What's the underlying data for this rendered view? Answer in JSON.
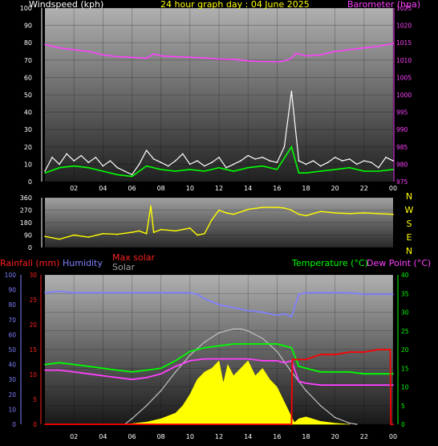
{
  "title": "24 hour graph day : 04 June 2025",
  "labels": {
    "windspeed": "Windspeed (kph)",
    "barometer": "Barometer (hpa)",
    "rainfall": "Rainfall (mm)",
    "humidity": "Humidity",
    "max_solar": "Max solar",
    "solar": "Solar",
    "temperature": "Temperature (°C)",
    "dew_point": "Dew Point (°C)"
  },
  "colors": {
    "windspeed": "#ffffff",
    "windavg": "#00ff00",
    "barometer": "#ff40ff",
    "direction": "#ffff00",
    "rainfall": "#ff0000",
    "humidity": "#8080ff",
    "max_solar": "#c0c0c0",
    "solar": "#ffff00",
    "temperature": "#00ff00",
    "dew_point": "#ff40ff",
    "title": "#ffff00",
    "axis_green": "#00ff00"
  },
  "chart_data": [
    {
      "type": "line",
      "title": "24 hour graph day : 04 June 2025",
      "x_ticks": [
        "02",
        "04",
        "06",
        "08",
        "10",
        "12",
        "14",
        "16",
        "18",
        "20",
        "22",
        "00"
      ],
      "xlim": [
        0,
        24
      ],
      "left_axis": {
        "label": "Windspeed (kph)",
        "ylim": [
          0,
          100
        ],
        "ticks": [
          0,
          10,
          20,
          30,
          40,
          50,
          60,
          70,
          80,
          90,
          100
        ]
      },
      "right_axis": {
        "label": "Barometer (hpa)",
        "ylim": [
          975,
          1025
        ],
        "ticks": [
          975,
          980,
          985,
          990,
          995,
          1000,
          1005,
          1010,
          1015,
          1020,
          1025
        ]
      },
      "series": [
        {
          "name": "Windspeed (kph)",
          "axis": "left",
          "x": [
            0,
            0.5,
            1,
            1.5,
            2,
            2.5,
            3,
            3.5,
            4,
            4.5,
            5,
            5.5,
            6,
            6.5,
            7,
            7.5,
            8,
            8.5,
            9,
            9.5,
            10,
            10.5,
            11,
            11.5,
            12,
            12.5,
            13,
            13.5,
            14,
            14.5,
            15,
            15.5,
            16,
            16.5,
            17,
            17.5,
            18,
            18.5,
            19,
            19.5,
            20,
            20.5,
            21,
            21.5,
            22,
            22.5,
            23,
            23.5,
            24
          ],
          "y": [
            6,
            14,
            10,
            16,
            12,
            15,
            11,
            14,
            9,
            12,
            8,
            6,
            4,
            10,
            18,
            13,
            11,
            9,
            12,
            16,
            10,
            12,
            9,
            11,
            14,
            8,
            10,
            12,
            15,
            13,
            14,
            12,
            11,
            20,
            52,
            12,
            10,
            12,
            9,
            11,
            14,
            12,
            13,
            10,
            12,
            11,
            8,
            14,
            12
          ]
        },
        {
          "name": "Wind average",
          "axis": "left",
          "x": [
            0,
            1,
            2,
            3,
            4,
            5,
            6,
            7,
            8,
            9,
            10,
            11,
            12,
            13,
            14,
            15,
            16,
            17,
            17.5,
            18,
            19,
            20,
            21,
            22,
            23,
            24
          ],
          "y": [
            5,
            8,
            9,
            8,
            6,
            4,
            3,
            9,
            7,
            6,
            7,
            6,
            8,
            6,
            8,
            9,
            7,
            20,
            5,
            5,
            6,
            7,
            8,
            6,
            6,
            7
          ]
        },
        {
          "name": "Barometer (hpa)",
          "axis": "right",
          "x": [
            0,
            1,
            2,
            3,
            4,
            5,
            6,
            7,
            7.5,
            8,
            9,
            10,
            11,
            12,
            13,
            14,
            15,
            16,
            16.5,
            17,
            17.3,
            18,
            19,
            20,
            21,
            22,
            23,
            24
          ],
          "y": [
            1014.5,
            1013.5,
            1013,
            1012.5,
            1011.5,
            1011,
            1010.8,
            1010.5,
            1011.8,
            1011.2,
            1011,
            1010.8,
            1010.6,
            1010.3,
            1010.2,
            1009.8,
            1009.6,
            1009.5,
            1009.8,
            1010.5,
            1012,
            1011.2,
            1011.5,
            1012.5,
            1013,
            1013.5,
            1014,
            1014.8
          ]
        }
      ]
    },
    {
      "type": "line",
      "x_ticks": [],
      "xlim": [
        0,
        24
      ],
      "left_axis": {
        "label": "",
        "ylim": [
          0,
          360
        ],
        "ticks": [
          0,
          90,
          180,
          270,
          360
        ]
      },
      "right_labels": [
        "N",
        "W",
        "S",
        "E",
        "N"
      ],
      "series": [
        {
          "name": "Wind direction",
          "axis": "left",
          "x": [
            0,
            1,
            2,
            3,
            4,
            5,
            6,
            6.5,
            7,
            7.3,
            7.5,
            8,
            9,
            10,
            10.5,
            11,
            11.5,
            12,
            12.5,
            13,
            14,
            15,
            16,
            16.5,
            17,
            17.5,
            18,
            19,
            20,
            21,
            22,
            23,
            24
          ],
          "y": [
            80,
            60,
            90,
            75,
            100,
            95,
            110,
            120,
            100,
            300,
            110,
            130,
            120,
            140,
            90,
            100,
            200,
            270,
            250,
            240,
            275,
            290,
            290,
            285,
            270,
            240,
            230,
            260,
            250,
            245,
            250,
            245,
            240
          ]
        }
      ]
    },
    {
      "type": "line",
      "x_ticks": [
        "02",
        "04",
        "06",
        "08",
        "10",
        "12",
        "14",
        "16",
        "18",
        "20",
        "22",
        "00"
      ],
      "xlim": [
        0,
        24
      ],
      "rainfall_axis": {
        "label": "Rainfall (mm)",
        "ylim": [
          0,
          30
        ],
        "ticks": [
          0,
          5,
          10,
          15,
          20,
          25,
          30
        ]
      },
      "humidity_axis": {
        "label": "Humidity",
        "ylim": [
          0,
          100
        ],
        "ticks": [
          0,
          10,
          20,
          30,
          40,
          50,
          60,
          70,
          80,
          90,
          100
        ]
      },
      "temperature_axis": {
        "label": "Temperature (°C)",
        "ylim": [
          0,
          40
        ],
        "ticks": [
          0,
          5,
          10,
          15,
          20,
          25,
          30,
          35,
          40
        ]
      },
      "series": [
        {
          "name": "Humidity",
          "axis": "humidity",
          "x": [
            0,
            1,
            2,
            3,
            4,
            5,
            6,
            7,
            8,
            9,
            9.5,
            10,
            10.5,
            11,
            12,
            13,
            14,
            15,
            16,
            16.5,
            17,
            17.5,
            18,
            19,
            20,
            21,
            22,
            23,
            24
          ],
          "y": [
            88,
            89,
            88,
            88,
            88,
            88,
            88,
            88,
            88,
            88,
            88,
            88,
            87,
            84,
            80,
            78,
            76,
            75,
            73,
            74,
            72,
            87,
            88,
            88,
            88,
            88,
            87,
            87,
            87
          ]
        },
        {
          "name": "Max solar",
          "axis": "temperature",
          "x": [
            5.5,
            6,
            7,
            8,
            9,
            10,
            11,
            12,
            13,
            13.5,
            14,
            15,
            16,
            17,
            18,
            19,
            20,
            21,
            21.5
          ],
          "y": [
            0,
            1.5,
            5,
            9,
            14,
            18.5,
            22,
            24.5,
            25.5,
            25.5,
            25,
            23,
            19.5,
            14,
            9,
            5,
            1.8,
            0.3,
            0
          ]
        },
        {
          "name": "Temperature (°C)",
          "axis": "temperature",
          "x": [
            0,
            1,
            2,
            3,
            4,
            5,
            6,
            7,
            8,
            9,
            10,
            11,
            12,
            13,
            14,
            15,
            16,
            16.5,
            17,
            17.5,
            18,
            19,
            20,
            21,
            22,
            23,
            24
          ],
          "y": [
            16,
            16.5,
            16,
            15.5,
            15,
            14.5,
            14,
            14.5,
            15,
            17,
            19.5,
            20.5,
            21,
            21.5,
            21.5,
            21.5,
            21.5,
            21,
            20.5,
            15.5,
            15,
            14,
            14,
            14,
            13.5,
            13.5,
            13.5
          ]
        },
        {
          "name": "Dew Point (°C)",
          "axis": "temperature",
          "x": [
            0,
            1,
            2,
            3,
            4,
            5,
            6,
            7,
            8,
            9,
            10,
            11,
            12,
            13,
            14,
            15,
            16,
            16.5,
            17,
            17.5,
            18,
            19,
            20,
            21,
            22,
            23,
            24
          ],
          "y": [
            14.5,
            14.5,
            14,
            13.5,
            13,
            12.5,
            12,
            12.5,
            13.5,
            15.5,
            17,
            17.5,
            17.5,
            17.5,
            17.5,
            17,
            17,
            16.5,
            17,
            11.5,
            11,
            10.5,
            10.5,
            10.5,
            10.5,
            10.5,
            10.5
          ]
        },
        {
          "name": "Solar",
          "axis": "temperature",
          "x": [
            5.5,
            6,
            7,
            8,
            9,
            9.5,
            10,
            10.5,
            11,
            11.5,
            12,
            12.3,
            12.6,
            13,
            13.5,
            14,
            14.5,
            15,
            15.5,
            16,
            16.5,
            17,
            17.2,
            17.5,
            18,
            19,
            20,
            21
          ],
          "y": [
            0,
            0.2,
            0.6,
            1.5,
            3,
            5,
            8,
            12,
            14,
            15,
            17,
            11,
            16,
            13,
            15,
            17,
            13,
            15,
            12,
            10,
            6,
            2,
            0.5,
            1.5,
            2,
            0.8,
            0.3,
            0
          ]
        },
        {
          "name": "Rainfall (mm)",
          "axis": "rainfall",
          "x": [
            0,
            17,
            17.05,
            18,
            19,
            20,
            21,
            22,
            23,
            23.8,
            23.85,
            24
          ],
          "y": [
            0,
            0,
            13,
            13,
            14,
            14,
            14.5,
            14.5,
            15,
            15,
            0,
            0
          ]
        }
      ]
    }
  ]
}
